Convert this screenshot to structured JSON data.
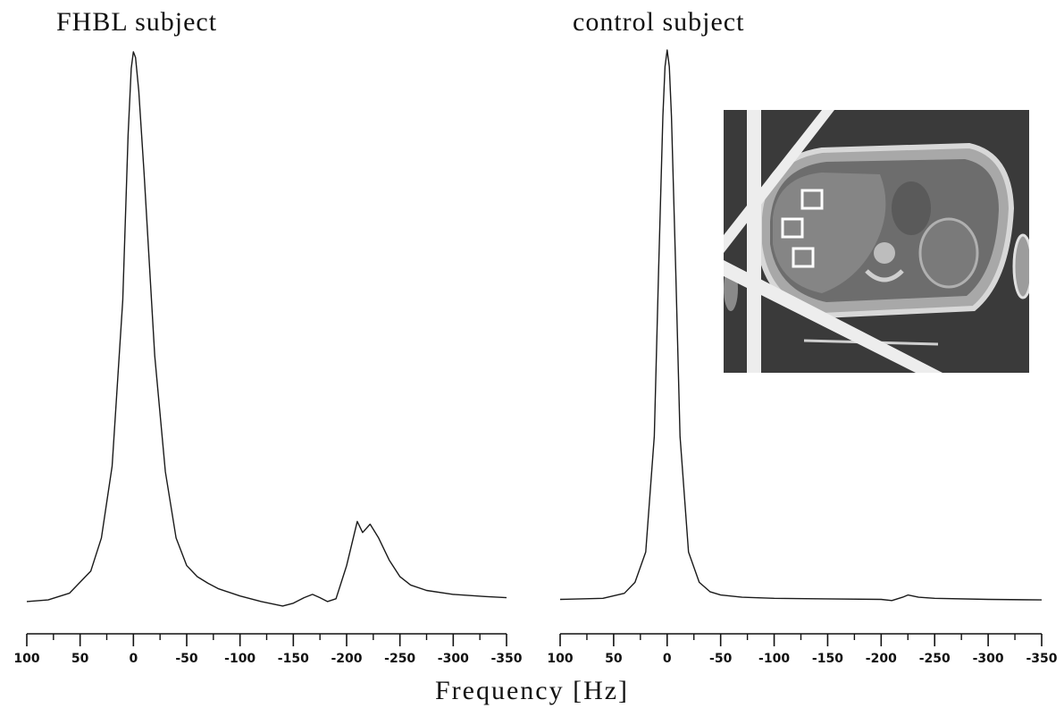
{
  "chart_data": [
    {
      "type": "line",
      "title": "FHBL subject",
      "xlabel": "Frequency [Hz]",
      "ylabel": "",
      "x_reversed": true,
      "xlim": [
        100,
        -350
      ],
      "xticks": [
        100,
        50,
        0,
        -50,
        -100,
        -150,
        -200,
        -250,
        -300,
        -350
      ],
      "tick_labels": [
        "100",
        "50",
        "0",
        "-50",
        "-100",
        "-150",
        "-200",
        "-250",
        "-300",
        "-350"
      ],
      "ylim": [
        0,
        1
      ],
      "grid": false,
      "series": [
        {
          "x": [
            100,
            80,
            60,
            40,
            30,
            20,
            10,
            5,
            2,
            0,
            -2,
            -5,
            -10,
            -20,
            -30,
            -40,
            -50,
            -60,
            -70,
            -80,
            -100,
            -120,
            -140,
            -150,
            -160,
            -168,
            -175,
            -182,
            -190,
            -200,
            -210,
            -215,
            -222,
            -230,
            -240,
            -250,
            -260,
            -275,
            -300,
            -330,
            -350
          ],
          "y": [
            0.005,
            0.008,
            0.02,
            0.06,
            0.12,
            0.25,
            0.55,
            0.85,
            0.97,
            1.0,
            0.99,
            0.93,
            0.78,
            0.45,
            0.24,
            0.12,
            0.07,
            0.05,
            0.038,
            0.028,
            0.015,
            0.005,
            -0.003,
            0.002,
            0.012,
            0.018,
            0.012,
            0.005,
            0.01,
            0.07,
            0.15,
            0.13,
            0.145,
            0.12,
            0.08,
            0.05,
            0.035,
            0.025,
            0.018,
            0.014,
            0.012
          ]
        }
      ]
    },
    {
      "type": "line",
      "title": "control subject",
      "xlabel": "Frequency [Hz]",
      "ylabel": "",
      "x_reversed": true,
      "xlim": [
        100,
        -350
      ],
      "xticks": [
        100,
        50,
        0,
        -50,
        -100,
        -150,
        -200,
        -250,
        -300,
        -350
      ],
      "tick_labels": [
        "100",
        "50",
        "0",
        "-50",
        "-100",
        "-150",
        "-200",
        "-250",
        "-300",
        "-350"
      ],
      "ylim": [
        0,
        1
      ],
      "grid": false,
      "series": [
        {
          "x": [
            100,
            60,
            40,
            30,
            20,
            12,
            8,
            4,
            2,
            0,
            -2,
            -4,
            -8,
            -12,
            -20,
            -30,
            -40,
            -50,
            -70,
            -100,
            -150,
            -200,
            -210,
            -220,
            -225,
            -235,
            -250,
            -300,
            -350
          ],
          "y": [
            0.004,
            0.006,
            0.015,
            0.035,
            0.09,
            0.3,
            0.6,
            0.88,
            0.97,
            1.0,
            0.97,
            0.88,
            0.6,
            0.3,
            0.09,
            0.035,
            0.018,
            0.012,
            0.008,
            0.006,
            0.005,
            0.004,
            0.002,
            0.008,
            0.012,
            0.008,
            0.006,
            0.004,
            0.003
          ]
        }
      ]
    }
  ]
}
